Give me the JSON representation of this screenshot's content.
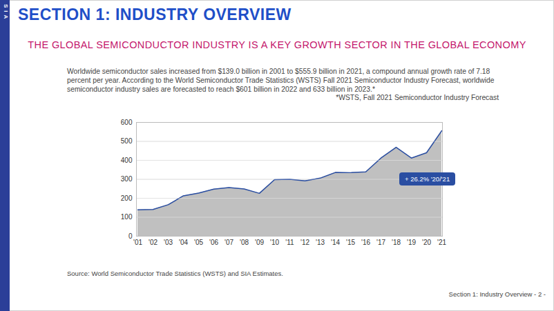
{
  "logo": "SIA",
  "title": "SECTION 1: INDUSTRY OVERVIEW",
  "subtitle": "THE GLOBAL SEMICONDUCTOR INDUSTRY IS A KEY GROWTH SECTOR IN THE GLOBAL ECONOMY",
  "description": "Worldwide semiconductor sales increased from $139.0 billion in 2001 to $555.9 billion in 2021, a compound annual growth rate of 7.18 percent per year. According to the World Semiconductor Trade Statistics (WSTS) Fall 2021 Semiconductor Industry Forecast, worldwide semiconductor industry sales are forecasted to reach $601 billion in 2022 and 633 billion in 2023.*",
  "footnote": "*WSTS, Fall 2021 Semiconductor Industry Forecast",
  "source": "Source: World Semiconductor Trade Statistics (WSTS) and SIA Estimates.",
  "footer": "Section 1: Industry Overview - 2 -",
  "chart_data": {
    "type": "area",
    "categories": [
      "'01",
      "'02",
      "'03",
      "'04",
      "'05",
      "'06",
      "'07",
      "'08",
      "'09",
      "'10",
      "'11",
      "'12",
      "'13",
      "'14",
      "'15",
      "'16",
      "'17",
      "'18",
      "'19",
      "'20",
      "'21"
    ],
    "values": [
      139,
      141,
      166,
      213,
      227,
      248,
      256,
      249,
      226,
      298,
      300,
      292,
      306,
      336,
      335,
      339,
      412,
      469,
      412,
      440,
      556
    ],
    "color": "#2a4ea2",
    "ylim": [
      0,
      600
    ],
    "yticks": [
      0,
      100,
      200,
      300,
      400,
      500,
      600
    ],
    "grid": true,
    "annotation": "+ 26.2% '20/'21"
  }
}
